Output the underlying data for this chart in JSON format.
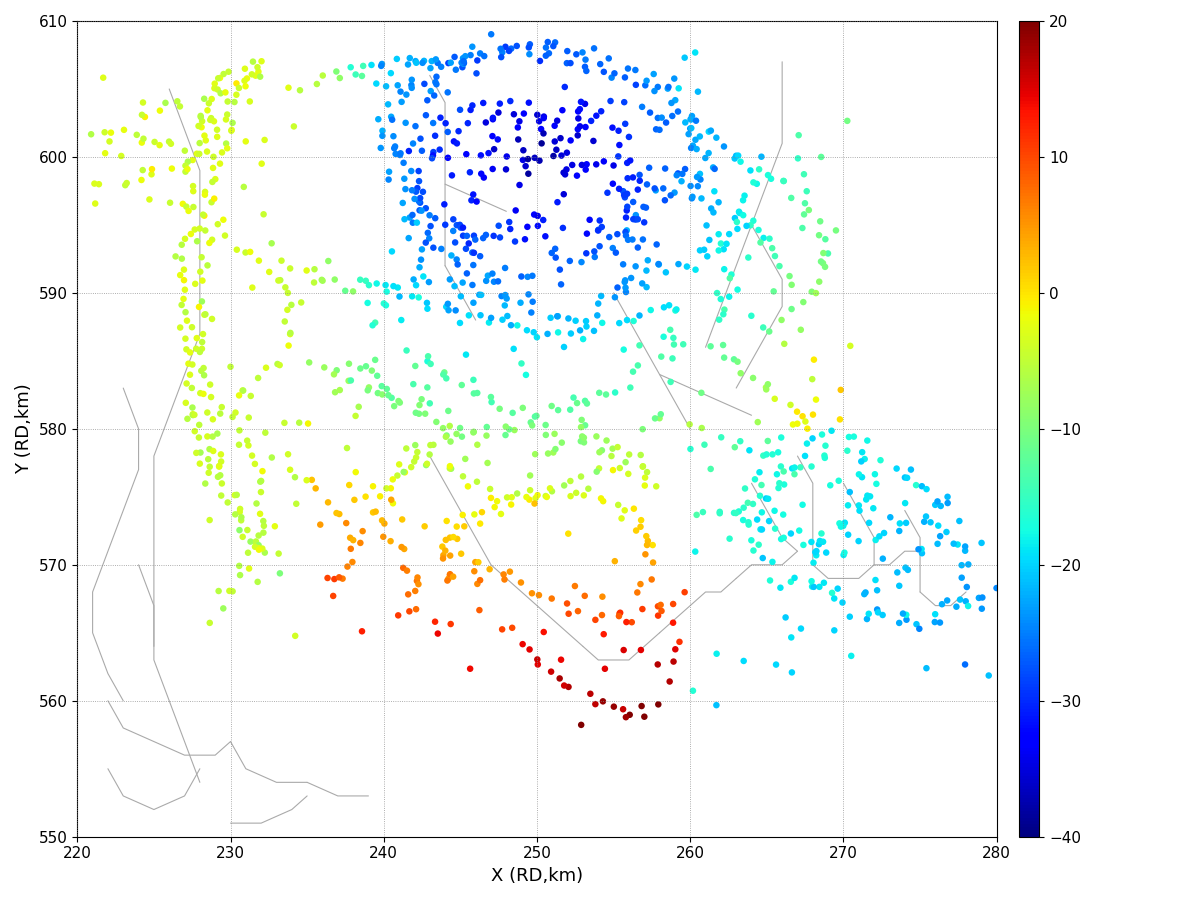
{
  "xlim": [
    220,
    280
  ],
  "ylim": [
    550,
    610
  ],
  "xticks": [
    220,
    230,
    240,
    250,
    260,
    270,
    280
  ],
  "yticks": [
    550,
    560,
    570,
    580,
    590,
    600,
    610
  ],
  "xlabel": "X (RD,km)",
  "ylabel": "Y (RD,km)",
  "cmap": "jet",
  "clim": [
    -40,
    20
  ],
  "cticks": [
    -40,
    -30,
    -20,
    -10,
    0,
    10,
    20
  ],
  "marker_size": 22,
  "grid_color": "#888888",
  "background_color": "#ffffff",
  "map_line_color": "#aaaaaa",
  "seed": 42
}
